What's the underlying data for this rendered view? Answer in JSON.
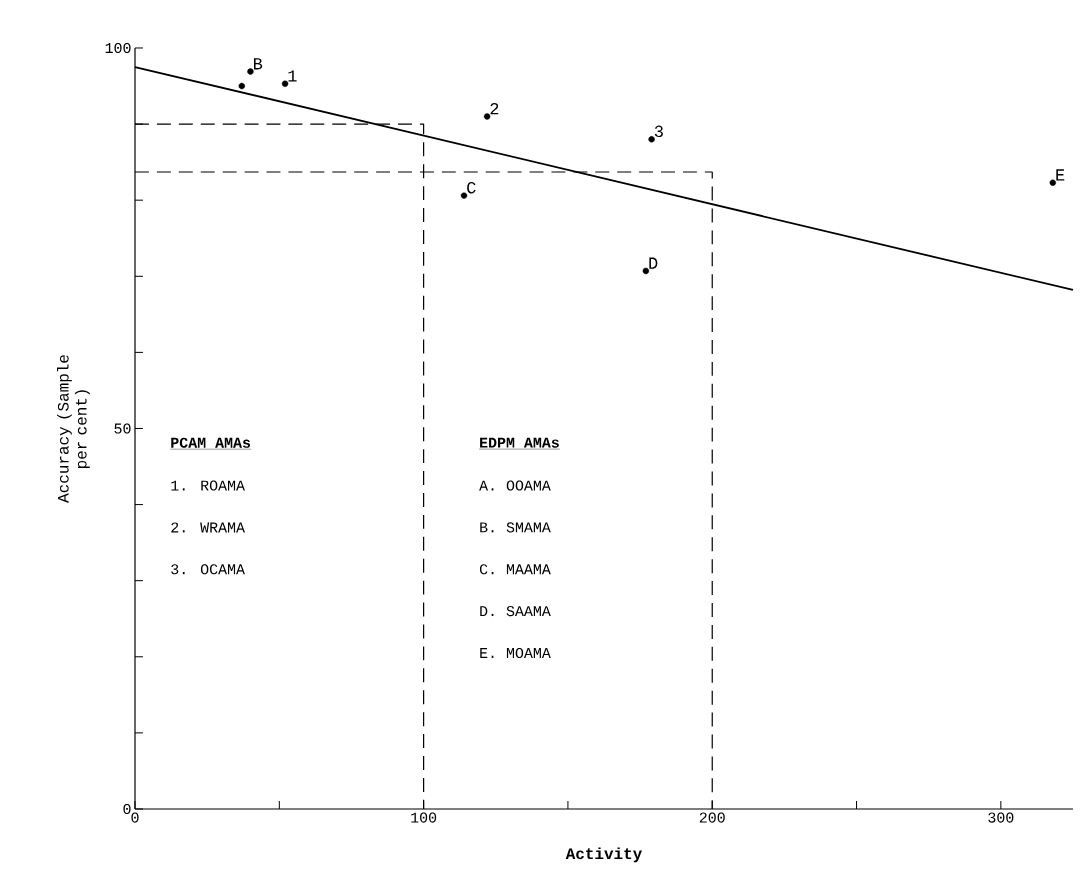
{
  "chart_data": {
    "type": "scatter",
    "xlabel": "Activity",
    "ylabel": "Accuracy (Sample per cent)",
    "xlim": [
      0,
      325
    ],
    "ylim": [
      0,
      100
    ],
    "xticks": [
      0,
      {
        "value": 50,
        "label": null
      },
      100,
      {
        "value": 150,
        "label": null
      },
      200,
      {
        "value": 250,
        "label": null
      },
      300
    ],
    "yticks": [
      0,
      {
        "value": 10,
        "label": null
      },
      {
        "value": 20,
        "label": null
      },
      {
        "value": 30,
        "label": null
      },
      {
        "value": 40,
        "label": null
      },
      50,
      {
        "value": 60,
        "label": null
      },
      {
        "value": 70,
        "label": null
      },
      {
        "value": 80,
        "label": null
      },
      {
        "value": 90,
        "label": null
      },
      100
    ],
    "grid": false,
    "x": [
      37,
      40,
      52,
      122,
      179,
      114,
      177,
      318
    ],
    "series": [
      {
        "color": "#000000",
        "marker": "circle",
        "values": [
          95,
          96.9,
          95.3,
          91,
          88,
          80.6,
          70.7,
          82.3
        ]
      },
      {
        "type": "line",
        "color": "#000000",
        "line_style": "solid",
        "marker": "none",
        "x": [
          0,
          325
        ],
        "values": [
          97.5,
          68.2
        ]
      },
      {
        "type": "line",
        "color": "#000000",
        "line_style": "dashed",
        "marker": "none",
        "x": [
          0,
          100,
          100
        ],
        "values": [
          90,
          90,
          0
        ]
      },
      {
        "type": "line",
        "color": "#000000",
        "line_style": "dashed",
        "marker": "none",
        "x": [
          0,
          200,
          200
        ],
        "values": [
          83.7,
          83.7,
          0
        ]
      }
    ],
    "annotations": [
      {
        "text": "B",
        "x": 40,
        "y": 96.9
      },
      {
        "text": "1",
        "x": 52,
        "y": 95.3
      },
      {
        "text": "2",
        "x": 122,
        "y": 91
      },
      {
        "text": "3",
        "x": 179,
        "y": 88
      },
      {
        "text": "C",
        "x": 114,
        "y": 80.6
      },
      {
        "text": "D",
        "x": 177,
        "y": 70.7
      },
      {
        "text": "E",
        "x": 318,
        "y": 82.3
      },
      "**PCAM AMAs**",
      "1.  ROAMA",
      "2.  WRAMA",
      "3.  OCAMA",
      "**EDPM AMAs**",
      "A.  OOAMA",
      "B.  SMAMA",
      "C.  MAAMA",
      "D.  SAAMA",
      "E.  MOAMA"
    ]
  }
}
